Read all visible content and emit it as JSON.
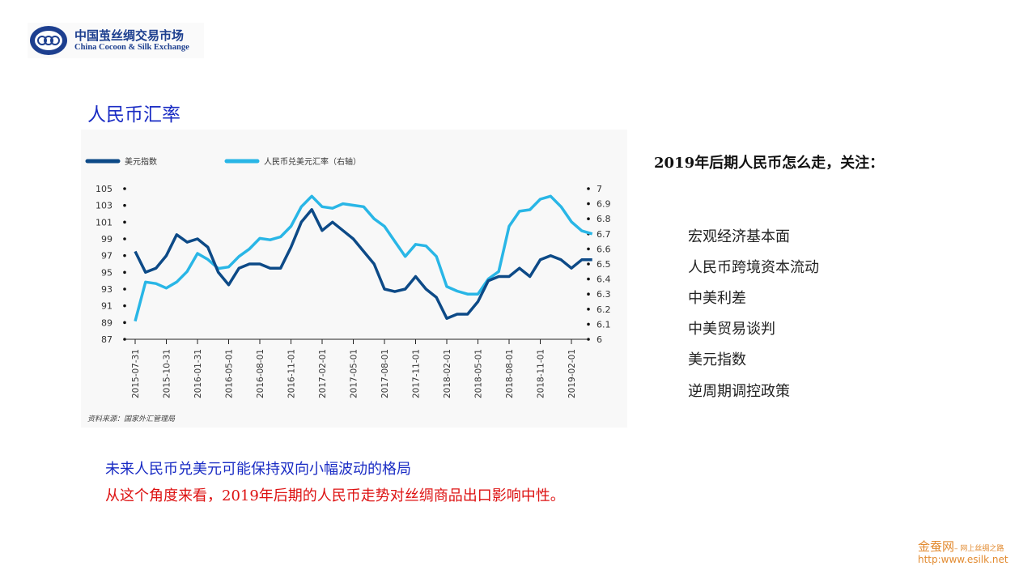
{
  "logo": {
    "cn": "中国茧丝绸交易市场",
    "en": "China Cocoon & Silk Exchange"
  },
  "title": "人民币汇率",
  "right": {
    "heading": "2019年后期人民币怎么走，关注：",
    "items": [
      "宏观经济基本面",
      "人民币跨境资本流动",
      "中美利差",
      "中美贸易谈判",
      "美元指数",
      "逆周期调控政策"
    ]
  },
  "bottom": {
    "line1": "未来人民币兑美元可能保持双向小幅波动的格局",
    "line2": "从这个角度来看，2019年后期的人民币走势对丝绸商品出口影响中性。"
  },
  "footer": {
    "brand": "金蚕网",
    "slogan": "– 网上丝绸之路",
    "url": "http:www.esilk.net"
  },
  "colors": {
    "dxy": "#0d4a87",
    "cny": "#29b6e6",
    "title": "#1a2cc4",
    "red": "#dd1111"
  },
  "chart_data": {
    "type": "line",
    "source": "资料来源：国家外汇管理局",
    "x_ticks": [
      "2015-07-31",
      "2015-10-31",
      "2016-01-31",
      "2016-05-01",
      "2016-08-01",
      "2016-11-01",
      "2017-02-01",
      "2017-05-01",
      "2017-08-01",
      "2017-11-01",
      "2018-02-01",
      "2018-05-01",
      "2018-08-01",
      "2018-11-01",
      "2019-02-01"
    ],
    "left_axis": {
      "ylim": [
        87,
        105
      ],
      "ticks": [
        "105",
        "103",
        "101",
        "99",
        "97",
        "95",
        "93",
        "91",
        "89",
        "87"
      ]
    },
    "right_axis": {
      "ylim": [
        6,
        7
      ],
      "ticks": [
        "7",
        "6.9",
        "6.8",
        "6.7",
        "6.6",
        "6.5",
        "6.4",
        "6.3",
        "6.2",
        "6.1",
        "6"
      ]
    },
    "x_months_start": "2015-07",
    "series": [
      {
        "name": "美元指数",
        "axis": "left",
        "values": [
          97.5,
          95,
          95.5,
          97,
          99.5,
          98.6,
          99,
          98,
          95,
          93.5,
          95.5,
          96,
          96,
          95.5,
          95.5,
          98,
          101,
          102.5,
          100,
          101,
          100,
          99,
          97.5,
          96,
          93,
          92.7,
          93,
          94.5,
          93,
          92,
          89.5,
          90,
          90,
          91.5,
          94,
          94.5,
          94.5,
          95.5,
          94.5,
          96.5,
          97,
          96.5,
          95.5,
          96.5,
          96.5
        ]
      },
      {
        "name": "人民币兑美元汇率（右轴）",
        "axis": "right",
        "values": [
          6.12,
          6.38,
          6.37,
          6.34,
          6.38,
          6.45,
          6.57,
          6.53,
          6.47,
          6.48,
          6.55,
          6.6,
          6.67,
          6.66,
          6.68,
          6.75,
          6.88,
          6.95,
          6.88,
          6.87,
          6.9,
          6.89,
          6.88,
          6.8,
          6.75,
          6.65,
          6.55,
          6.63,
          6.62,
          6.55,
          6.35,
          6.32,
          6.3,
          6.3,
          6.4,
          6.45,
          6.75,
          6.85,
          6.86,
          6.93,
          6.95,
          6.88,
          6.78,
          6.72,
          6.7
        ]
      }
    ]
  }
}
